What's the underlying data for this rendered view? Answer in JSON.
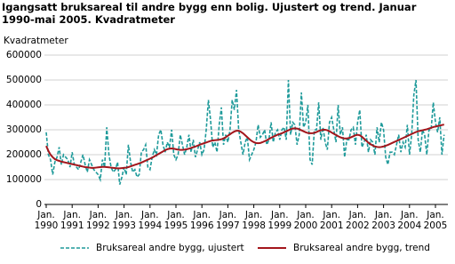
{
  "chart_data": {
    "type": "line",
    "title": "Igangsatt bruksareal til andre bygg enn bolig. Ujustert og trend. Januar 1990-mai 2005. Kvadratmeter",
    "y_label": "Kvadratmeter",
    "categories": [
      "Jan. 1990",
      null,
      null,
      null,
      null,
      null,
      null,
      null,
      null,
      null,
      null,
      null,
      "Jan. 1991",
      null,
      null,
      null,
      null,
      null,
      null,
      null,
      null,
      null,
      null,
      null,
      "Jan. 1992",
      null,
      null,
      null,
      null,
      null,
      null,
      null,
      null,
      null,
      null,
      null,
      "Jan. 1993",
      null,
      null,
      null,
      null,
      null,
      null,
      null,
      null,
      null,
      null,
      null,
      "Jan. 1994",
      null,
      null,
      null,
      null,
      null,
      null,
      null,
      null,
      null,
      null,
      null,
      "Jan. 1995",
      null,
      null,
      null,
      null,
      null,
      null,
      null,
      null,
      null,
      null,
      null,
      "Jan. 1996",
      null,
      null,
      null,
      null,
      null,
      null,
      null,
      null,
      null,
      null,
      null,
      "Jan. 1997",
      null,
      null,
      null,
      null,
      null,
      null,
      null,
      null,
      null,
      null,
      null,
      "Jan. 1998",
      null,
      null,
      null,
      null,
      null,
      null,
      null,
      null,
      null,
      null,
      null,
      "Jan. 1999",
      null,
      null,
      null,
      null,
      null,
      null,
      null,
      null,
      null,
      null,
      null,
      "Jan. 2000",
      null,
      null,
      null,
      null,
      null,
      null,
      null,
      null,
      null,
      null,
      null,
      "Jan. 2001",
      null,
      null,
      null,
      null,
      null,
      null,
      null,
      null,
      null,
      null,
      null,
      "Jan. 2002",
      null,
      null,
      null,
      null,
      null,
      null,
      null,
      null,
      null,
      null,
      null,
      "Jan. 2003",
      null,
      null,
      null,
      null,
      null,
      null,
      null,
      null,
      null,
      null,
      null,
      "Jan. 2004",
      null,
      null,
      null,
      null,
      null,
      null,
      null,
      null,
      null,
      null,
      null,
      "Jan. 2005",
      null,
      null,
      null,
      null
    ],
    "series": [
      {
        "name": "Bruksareal andre bygg, ujustert",
        "color": "#1e9a9a",
        "dashed": true,
        "values": [
          290000,
          200000,
          180000,
          120000,
          170000,
          190000,
          230000,
          160000,
          200000,
          190000,
          180000,
          150000,
          210000,
          160000,
          150000,
          140000,
          170000,
          200000,
          160000,
          130000,
          180000,
          160000,
          140000,
          130000,
          120000,
          100000,
          180000,
          150000,
          310000,
          200000,
          150000,
          130000,
          140000,
          170000,
          80000,
          110000,
          150000,
          120000,
          240000,
          170000,
          130000,
          140000,
          110000,
          120000,
          210000,
          220000,
          240000,
          150000,
          140000,
          190000,
          220000,
          200000,
          280000,
          300000,
          240000,
          210000,
          250000,
          230000,
          300000,
          200000,
          180000,
          200000,
          280000,
          240000,
          200000,
          230000,
          280000,
          210000,
          260000,
          190000,
          220000,
          250000,
          200000,
          220000,
          300000,
          420000,
          340000,
          230000,
          250000,
          210000,
          320000,
          390000,
          240000,
          280000,
          250000,
          300000,
          420000,
          380000,
          460000,
          300000,
          250000,
          200000,
          250000,
          270000,
          180000,
          200000,
          220000,
          250000,
          320000,
          270000,
          280000,
          300000,
          240000,
          260000,
          330000,
          250000,
          290000,
          300000,
          260000,
          300000,
          310000,
          260000,
          500000,
          280000,
          330000,
          320000,
          240000,
          280000,
          450000,
          310000,
          330000,
          400000,
          180000,
          160000,
          300000,
          300000,
          410000,
          260000,
          310000,
          250000,
          220000,
          330000,
          350000,
          300000,
          250000,
          400000,
          280000,
          310000,
          190000,
          260000,
          260000,
          300000,
          310000,
          240000,
          330000,
          380000,
          230000,
          250000,
          280000,
          210000,
          260000,
          250000,
          200000,
          310000,
          250000,
          330000,
          300000,
          190000,
          160000,
          210000,
          210000,
          200000,
          240000,
          280000,
          210000,
          250000,
          230000,
          320000,
          200000,
          280000,
          440000,
          500000,
          260000,
          210000,
          300000,
          280000,
          200000,
          300000,
          300000,
          410000,
          330000,
          290000,
          350000,
          200000,
          280000
        ]
      },
      {
        "name": "Bruksareal andre bygg, trend",
        "color": "#a3161c",
        "dashed": false,
        "values": [
          235000,
          215000,
          200000,
          190000,
          182000,
          178000,
          175000,
          172000,
          170000,
          168000,
          166000,
          164000,
          162000,
          160000,
          158000,
          156000,
          154000,
          152000,
          150000,
          149000,
          148000,
          147000,
          147000,
          148000,
          149000,
          150000,
          151000,
          151000,
          150000,
          149000,
          148000,
          147000,
          146000,
          145000,
          145000,
          146000,
          147000,
          148000,
          150000,
          153000,
          156000,
          159000,
          162000,
          165000,
          168000,
          172000,
          176000,
          180000,
          184000,
          188000,
          193000,
          198000,
          203000,
          208000,
          213000,
          218000,
          222000,
          224000,
          225000,
          224000,
          222000,
          220000,
          219000,
          219000,
          220000,
          222000,
          224000,
          227000,
          230000,
          233000,
          236000,
          240000,
          243000,
          246000,
          249000,
          252000,
          255000,
          257000,
          258000,
          259000,
          260000,
          262000,
          265000,
          270000,
          276000,
          282000,
          288000,
          293000,
          296000,
          296000,
          292000,
          286000,
          278000,
          270000,
          262000,
          255000,
          250000,
          247000,
          246000,
          247000,
          250000,
          254000,
          258000,
          263000,
          268000,
          272000,
          276000,
          280000,
          283000,
          286000,
          290000,
          294000,
          298000,
          302000,
          305000,
          306000,
          305000,
          302000,
          298000,
          294000,
          290000,
          287000,
          286000,
          286000,
          288000,
          291000,
          295000,
          298000,
          300000,
          300000,
          298000,
          294000,
          289000,
          284000,
          279000,
          274000,
          270000,
          267000,
          265000,
          265000,
          267000,
          270000,
          274000,
          278000,
          280000,
          278000,
          272000,
          264000,
          256000,
          248000,
          242000,
          237000,
          233000,
          231000,
          230000,
          231000,
          233000,
          236000,
          239000,
          243000,
          247000,
          251000,
          255000,
          259000,
          263000,
          267000,
          271000,
          275000,
          279000,
          283000,
          287000,
          291000,
          294000,
          296000,
          298000,
          300000,
          302000,
          305000,
          308000,
          311000,
          313000,
          315000,
          317000,
          319000,
          321000
        ]
      }
    ],
    "ylim": [
      0,
      600000
    ],
    "yticks": [
      0,
      100000,
      200000,
      300000,
      400000,
      500000,
      600000
    ],
    "grid": true,
    "legend": "bottom"
  }
}
